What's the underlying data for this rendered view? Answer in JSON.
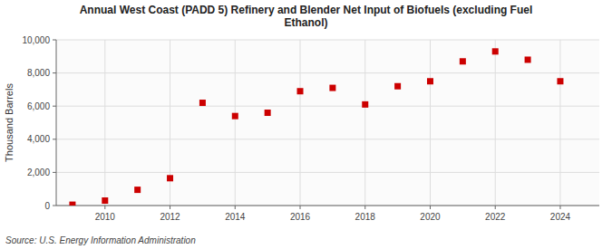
{
  "chart_data": {
    "type": "scatter",
    "title": "Annual West Coast (PADD 5) Refinery and Blender Net Input of Biofuels (excluding Fuel\nEthanol)",
    "ylabel": "Thousand Barrels",
    "source": "Source: U.S. Energy Information Administration",
    "x": [
      2009,
      2010,
      2011,
      2012,
      2013,
      2014,
      2015,
      2016,
      2017,
      2018,
      2019,
      2020,
      2021,
      2022,
      2023,
      2024
    ],
    "values": [
      50,
      300,
      950,
      1650,
      6200,
      5400,
      5600,
      6900,
      7100,
      6100,
      7200,
      7500,
      8700,
      9300,
      8800,
      7500
    ],
    "color": "#CC0000",
    "marker": "square",
    "xlim": [
      2008.5,
      2025.2
    ],
    "xticks": [
      2010,
      2012,
      2014,
      2016,
      2018,
      2020,
      2022,
      2024
    ],
    "ylim": [
      0,
      10000
    ],
    "yticks": [
      0,
      {
        "value": 2000,
        "label": "2,000"
      },
      {
        "value": 4000,
        "label": "4,000"
      },
      {
        "value": 6000,
        "label": "6,000"
      },
      {
        "value": 8000,
        "label": "8,000"
      },
      {
        "value": 10000,
        "label": "10,000"
      }
    ],
    "grid": true
  }
}
